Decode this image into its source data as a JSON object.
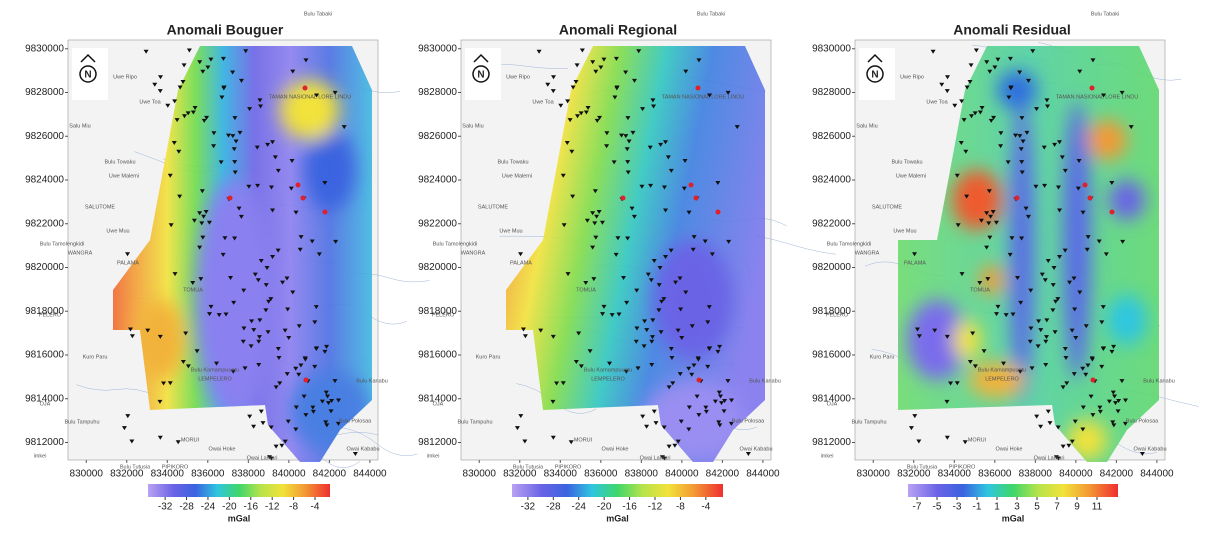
{
  "map": {
    "xlim": [
      829100,
      844400
    ],
    "ylim": [
      9811200,
      9830400
    ],
    "xticks": [
      830000,
      832000,
      834000,
      836000,
      838000,
      840000,
      842000,
      844000
    ],
    "yticks": [
      9812000,
      9814000,
      9816000,
      9818000,
      9820000,
      9822000,
      9824000,
      9826000,
      9828000,
      9830000
    ]
  },
  "north_label": "N",
  "place_names": [
    "Bulu Tabaki",
    "Uwe Ripo",
    "Uwe Toa",
    "Salu Miu",
    "Bulu Towaku",
    "Uwe Malemi",
    "SALUTOME",
    "Uwe Muu",
    "Bulu Tamolengkidi",
    "WANGRA",
    "PALAMA",
    "PELERO",
    "Kuro Paru",
    "Bulu Kamampuuntu",
    "LEMPELERO",
    "OJA",
    "Bulu Tampuhu",
    "MORUI",
    "Owai Hoke",
    "Bulu Tutusia",
    "PIPIKORO",
    "Owai Lamari",
    "imkei",
    "Bulu Polosaa",
    "Owai Kababu",
    "Bulu Kanabu",
    "TAMAN NASIONAL LORE LINDU",
    "TOMUA"
  ],
  "panels": [
    {
      "title": "Anomali Bouguer",
      "colorbar": {
        "clim": [
          -35.2,
          -1.2
        ],
        "ticks": [
          -32,
          -28,
          -24,
          -20,
          -16,
          -12,
          -8,
          -4
        ],
        "unit": "mGal"
      }
    },
    {
      "title": "Anomali Regional",
      "colorbar": {
        "clim": [
          -34.5,
          -1.3
        ],
        "ticks": [
          -32,
          -28,
          -24,
          -20,
          -16,
          -12,
          -8,
          -4
        ],
        "unit": "mGal"
      }
    },
    {
      "title": "Anomali Residual",
      "colorbar": {
        "clim": [
          -7.9,
          13.1
        ],
        "ticks": [
          -7,
          -5,
          -3,
          -1,
          1,
          3,
          5,
          7,
          9,
          11
        ],
        "unit": "mGal"
      }
    }
  ]
}
